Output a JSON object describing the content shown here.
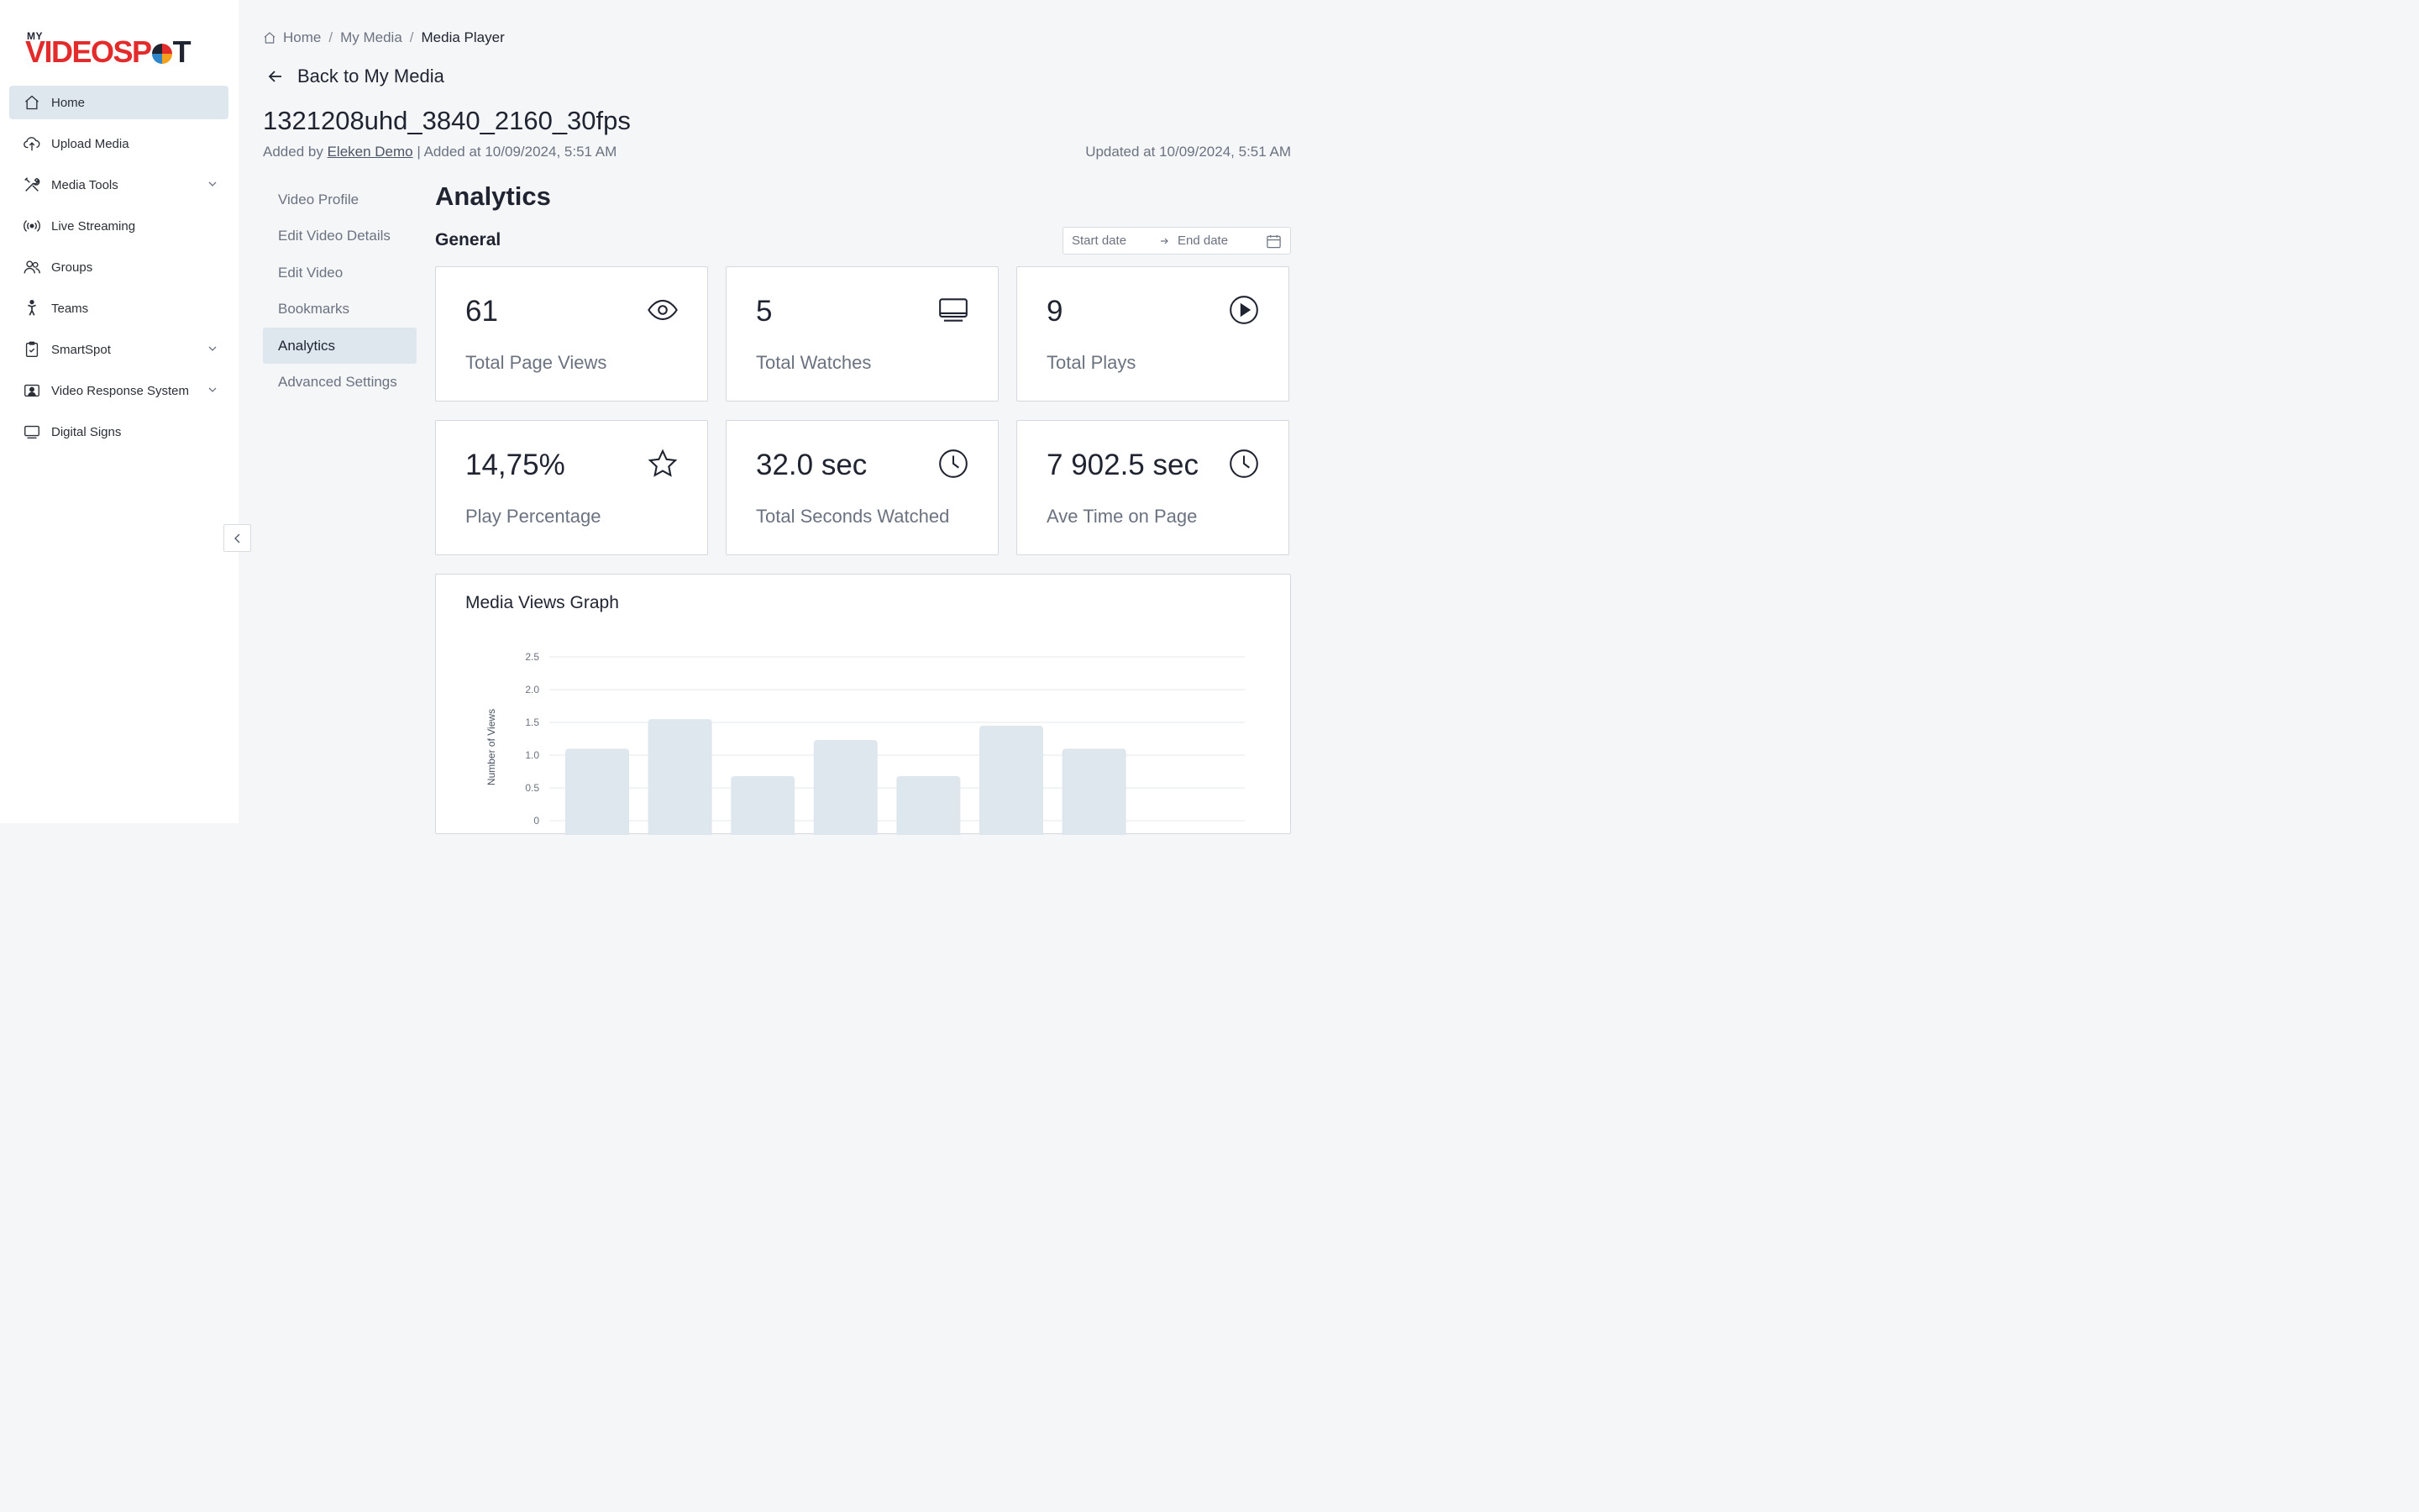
{
  "logo": {
    "my": "MY",
    "part1": "VIDEOSP",
    "part2": "T"
  },
  "sidebar": {
    "items": [
      {
        "label": "Home",
        "icon": "home-icon",
        "active": true
      },
      {
        "label": "Upload Media",
        "icon": "cloud-upload-icon"
      },
      {
        "label": "Media Tools",
        "icon": "tools-icon",
        "expandable": true
      },
      {
        "label": "Live Streaming",
        "icon": "broadcast-icon"
      },
      {
        "label": "Groups",
        "icon": "users-icon"
      },
      {
        "label": "Teams",
        "icon": "person-icon"
      },
      {
        "label": "SmartSpot",
        "icon": "clipboard-icon",
        "expandable": true
      },
      {
        "label": "Video Response System",
        "icon": "video-user-icon",
        "expandable": true
      },
      {
        "label": "Digital Signs",
        "icon": "monitor-icon"
      }
    ]
  },
  "breadcrumb": {
    "home": "Home",
    "sep": "/",
    "my_media": "My Media",
    "current": "Media Player"
  },
  "back_label": "Back to My Media",
  "video": {
    "title": "1321208uhd_3840_2160_30fps",
    "added_by_prefix": "Added by",
    "author": "Eleken Demo",
    "added_at": "| Added at 10/09/2024, 5:51 AM",
    "updated_at": "Updated at 10/09/2024, 5:51 AM"
  },
  "subnav": {
    "items": [
      "Video Profile",
      "Edit Video Details",
      "Edit Video",
      "Bookmarks",
      "Analytics",
      "Advanced Settings"
    ],
    "active": "Analytics"
  },
  "analytics": {
    "title": "Analytics",
    "general": "General",
    "date_range": {
      "start_placeholder": "Start date",
      "end_placeholder": "End date"
    },
    "cards": [
      {
        "value": "61",
        "label": "Total Page Views",
        "icon": "eye-icon"
      },
      {
        "value": "5",
        "label": "Total Watches",
        "icon": "monitor-icon"
      },
      {
        "value": "9",
        "label": "Total Plays",
        "icon": "play-circle-icon"
      },
      {
        "value": "14,75%",
        "label": "Play Percentage",
        "icon": "star-icon"
      },
      {
        "value": "32.0 sec",
        "label": "Total Seconds Watched",
        "icon": "clock-icon"
      },
      {
        "value": "7 902.5 sec",
        "label": "Ave Time on Page",
        "icon": "clock-icon"
      }
    ]
  },
  "chart_data": {
    "type": "bar",
    "title": "Media Views Graph",
    "ylabel": "Number of Views",
    "xlabel": "",
    "ylim": [
      0,
      2.5
    ],
    "yticks": [
      "0",
      "0.5",
      "1.0",
      "1.5",
      "2.0",
      "2.5"
    ],
    "values": [
      1.1,
      1.55,
      0.68,
      1.23,
      0.68,
      1.45,
      1.1
    ],
    "grid": true,
    "bar_color": "#dfe7ee"
  },
  "colors": {
    "accent_bg": "#dfe7ee",
    "logo_red": "#e32b2b"
  }
}
